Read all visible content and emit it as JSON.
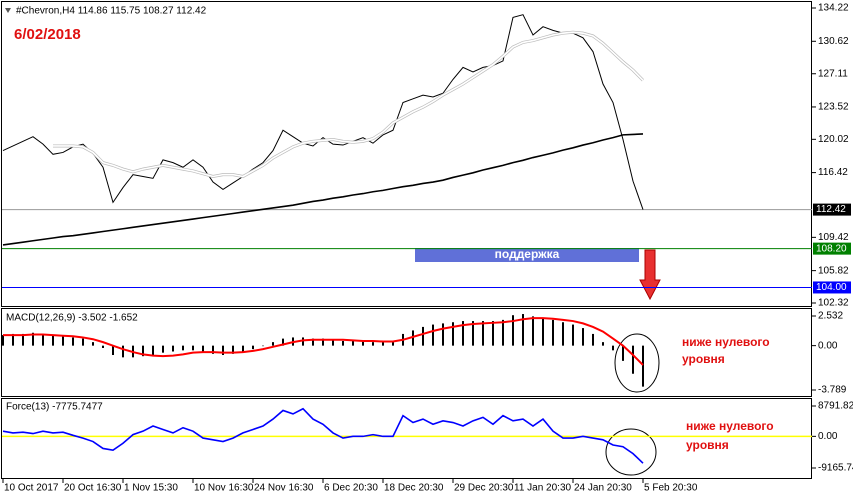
{
  "chart_data": [
    {
      "type": "line",
      "title": "#Chevron,H4  114.86 115.75 108.27 112.42",
      "annotations": [
        "6/02/2018",
        "поддержка"
      ],
      "xlim": [
        0,
        64
      ],
      "ylim": [
        102.32,
        134.22
      ],
      "yticks": [
        134.22,
        130.62,
        127.11,
        123.52,
        120.02,
        116.42,
        109.42,
        105.82,
        102.32
      ],
      "levels": [
        {
          "value": 112.42,
          "color": "#000000"
        },
        {
          "value": 108.2,
          "label": "108.20",
          "color": "#008000"
        },
        {
          "value": 104,
          "label": "104.00",
          "color": "#0000ff"
        }
      ],
      "series": [
        {
          "kind": "line",
          "color": "#000000",
          "values": [
            118.8,
            119.3,
            119.8,
            120.3,
            119.5,
            118.4,
            118.6,
            119.2,
            119.5,
            118.5,
            117.0,
            113.2,
            114.8,
            116.2,
            116.0,
            115.8,
            117.8,
            117.5,
            117.0,
            117.8,
            117.0,
            115.4,
            114.6,
            115.3,
            116.0,
            116.8,
            117.5,
            118.8,
            121.0,
            120.3,
            119.6,
            119.3,
            120.2,
            119.5,
            119.4,
            119.8,
            120.2,
            119.6,
            120.5,
            121.0,
            124.0,
            124.4,
            124.8,
            124.6,
            125.0,
            126.5,
            127.8,
            127.3,
            127.8,
            128.0,
            128.5,
            133.2,
            133.5,
            131.3,
            132.2,
            131.8,
            131.5,
            131.5,
            131.0,
            129.5,
            126.0,
            124.0,
            120.0,
            115.5,
            112.42
          ]
        },
        {
          "kind": "line",
          "color": "#ffffff",
          "values": [
            null,
            null,
            null,
            null,
            null,
            119.3,
            119.3,
            119.3,
            119.2,
            118.6,
            117.5,
            117.2,
            116.8,
            116.5,
            116.8,
            117.0,
            117.2,
            117.0,
            116.8,
            116.6,
            116.3,
            116.0,
            116.2,
            116.2,
            116.0,
            116.6,
            117.2,
            118.0,
            118.6,
            119.2,
            119.6,
            119.8,
            119.9,
            120.0,
            119.8,
            119.7,
            119.8,
            120.1,
            120.8,
            121.8,
            122.4,
            123.0,
            123.5,
            124.1,
            124.8,
            125.4,
            126.0,
            126.7,
            127.4,
            128.1,
            129.0,
            130.0,
            130.5,
            130.7,
            131.0,
            131.3,
            131.5,
            131.6,
            131.5,
            131.2,
            130.4,
            129.4,
            128.4,
            127.5,
            126.4
          ]
        },
        {
          "kind": "line",
          "color": "#000000",
          "values": [
            108.6,
            108.75,
            108.9,
            109.05,
            109.2,
            109.35,
            109.5,
            109.6,
            109.75,
            109.9,
            110.05,
            110.2,
            110.35,
            110.5,
            110.65,
            110.8,
            110.95,
            111.1,
            111.25,
            111.4,
            111.55,
            111.7,
            111.85,
            112.0,
            112.15,
            112.3,
            112.45,
            112.6,
            112.75,
            112.9,
            113.1,
            113.3,
            113.45,
            113.65,
            113.8,
            114.0,
            114.15,
            114.35,
            114.5,
            114.7,
            114.9,
            115.05,
            115.25,
            115.4,
            115.6,
            115.9,
            116.15,
            116.4,
            116.7,
            116.95,
            117.2,
            117.5,
            117.75,
            118.05,
            118.3,
            118.55,
            118.85,
            119.1,
            119.4,
            119.65,
            119.95,
            120.2,
            120.5,
            120.55,
            120.6
          ]
        }
      ]
    },
    {
      "type": "bar",
      "title": "MACD(12,26,9) -3.502 -1.652",
      "annotations": [
        "ниже нулевого",
        "уровня"
      ],
      "xlim": [
        0,
        64
      ],
      "ylim": [
        -3.789,
        2.532
      ],
      "yticks": [
        2.532,
        {
          "value": 0,
          "label": "0.00"
        },
        -3.789
      ],
      "series": [
        {
          "kind": "bar",
          "color": "#000000",
          "values": [
            0.9,
            1.0,
            1.0,
            1.1,
            1.0,
            0.9,
            0.8,
            0.7,
            0.6,
            0.3,
            -0.2,
            -0.8,
            -1.0,
            -1.0,
            -0.9,
            -0.8,
            -0.6,
            -0.5,
            -0.4,
            -0.4,
            -0.5,
            -0.7,
            -0.8,
            -0.7,
            -0.5,
            -0.3,
            0.0,
            0.3,
            0.6,
            0.7,
            0.7,
            0.6,
            0.6,
            0.5,
            0.4,
            0.4,
            0.4,
            0.3,
            0.3,
            0.4,
            1.0,
            1.3,
            1.6,
            1.8,
            1.9,
            2.0,
            2.1,
            2.1,
            2.1,
            2.1,
            2.2,
            2.6,
            2.7,
            2.5,
            2.4,
            2.2,
            2.0,
            1.8,
            1.5,
            1.0,
            0.3,
            -0.4,
            -1.3,
            -2.4,
            -3.502
          ]
        },
        {
          "kind": "line",
          "color": "#ff0000",
          "values": [
            0.9,
            0.9,
            0.9,
            0.95,
            0.95,
            0.9,
            0.85,
            0.8,
            0.7,
            0.55,
            0.3,
            0.0,
            -0.3,
            -0.55,
            -0.75,
            -0.85,
            -0.9,
            -0.85,
            -0.75,
            -0.6,
            -0.55,
            -0.55,
            -0.6,
            -0.6,
            -0.55,
            -0.45,
            -0.3,
            -0.1,
            0.1,
            0.3,
            0.45,
            0.5,
            0.5,
            0.5,
            0.5,
            0.45,
            0.4,
            0.4,
            0.35,
            0.35,
            0.5,
            0.75,
            1.0,
            1.25,
            1.45,
            1.6,
            1.75,
            1.85,
            1.9,
            1.95,
            2.0,
            2.1,
            2.25,
            2.35,
            2.35,
            2.3,
            2.2,
            2.1,
            1.9,
            1.6,
            1.2,
            0.6,
            0.0,
            -0.8,
            -1.652
          ]
        }
      ]
    },
    {
      "type": "line",
      "title": "Force(13) -7775.7477",
      "annotations": [
        "ниже нулевого",
        "уровня"
      ],
      "xlim": [
        0,
        64
      ],
      "ylim": [
        -9165.74,
        8791.827
      ],
      "yticks": [
        8791.827,
        {
          "value": 0,
          "label": "0.00"
        },
        -9165.74
      ],
      "levels": [
        {
          "value": 0,
          "color": "#ffff00"
        }
      ],
      "xticks": [
        {
          "value": 0,
          "label": "10 Oct 2017"
        },
        {
          "value": 6,
          "label": "20 Oct 16:30"
        },
        {
          "value": 12,
          "label": "1 Nov 15:30"
        },
        {
          "value": 19,
          "label": "10 Nov 16:30"
        },
        {
          "value": 25,
          "label": "24 Nov 16:30"
        },
        {
          "value": 32,
          "label": "6 Dec 20:30"
        },
        {
          "value": 38,
          "label": "18 Dec 20:30"
        },
        {
          "value": 45,
          "label": "29 Dec 20:30"
        },
        {
          "value": 51,
          "label": "11 Jan 20:30"
        },
        {
          "value": 57,
          "label": "24 Jan 20:30"
        },
        {
          "value": 64,
          "label": "5 Feb 20:30"
        }
      ],
      "series": [
        {
          "kind": "line",
          "color": "#0000ff",
          "values": [
            1500,
            1000,
            1200,
            800,
            1500,
            1000,
            1200,
            300,
            -500,
            -1500,
            -3500,
            -4000,
            -2000,
            500,
            1500,
            3000,
            2000,
            1000,
            2500,
            1500,
            -500,
            -1000,
            -1500,
            -500,
            1000,
            2000,
            3000,
            5000,
            7500,
            6500,
            8000,
            5000,
            3500,
            1000,
            -500,
            0,
            0,
            500,
            0,
            0,
            6000,
            4000,
            5000,
            3500,
            4500,
            4000,
            3000,
            4500,
            5500,
            3500,
            6000,
            4500,
            5000,
            3000,
            5000,
            1500,
            -500,
            -500,
            0,
            -500,
            -1000,
            -2500,
            -3000,
            -5000,
            -7775.7477
          ]
        }
      ]
    }
  ]
}
